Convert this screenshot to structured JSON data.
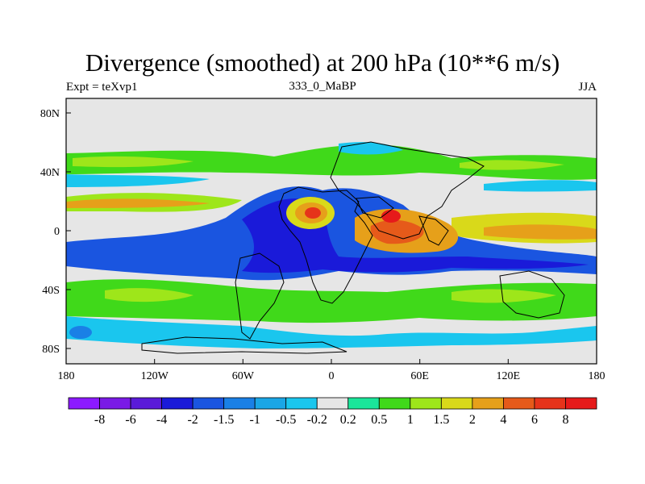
{
  "title": "Divergence (smoothed) at 200 hPa (10**6 m/s)",
  "left_string": "Expt = teXvp1",
  "center_string": "333_0_MaBP",
  "right_string": "JJA",
  "colors": {
    "background_field": "#e6e6e6",
    "coastline": "#000000"
  },
  "chart_data": {
    "type": "heatmap",
    "projection": "cylindrical equidistant",
    "x_ticks": [
      "180",
      "120W",
      "60W",
      "0",
      "60E",
      "120E",
      "180"
    ],
    "y_ticks": [
      "80N",
      "40N",
      "0",
      "40S",
      "80S"
    ],
    "xlim": [
      -180,
      180
    ],
    "ylim": [
      -90,
      90
    ],
    "colorbar": {
      "labels": [
        "-8",
        "-6",
        "-4",
        "-2",
        "-1.5",
        "-1",
        "-0.5",
        "-0.2",
        "0.2",
        "0.5",
        "1",
        "1.5",
        "2",
        "4",
        "6",
        "8"
      ],
      "colors": [
        "#8c1aff",
        "#7a1ae6",
        "#5a1ad9",
        "#1a1ad9",
        "#1a55e0",
        "#1a80e6",
        "#1aa6e6",
        "#1ac6ee",
        "#e6e6e6",
        "#1ae69a",
        "#40d91a",
        "#9ee61a",
        "#d9d91a",
        "#e6a01a",
        "#e65a1a",
        "#e6331a",
        "#e61a1a"
      ]
    },
    "features": [
      {
        "name": "northern-midlat-green-band",
        "lon": [
          -180,
          180
        ],
        "lat": [
          28,
          52
        ],
        "value": 0.5
      },
      {
        "name": "subtropical-north-positive-band",
        "lon": [
          -180,
          -40
        ],
        "lat": [
          10,
          25
        ],
        "value": 1.5
      },
      {
        "name": "central-africa-max",
        "lon": [
          -10,
          0
        ],
        "lat": [
          10,
          18
        ],
        "value": 6
      },
      {
        "name": "india-asia-max",
        "lon": [
          30,
          60
        ],
        "lat": [
          -8,
          15
        ],
        "value": 6
      },
      {
        "name": "tropical-negative-band",
        "lon": [
          -150,
          160
        ],
        "lat": [
          -25,
          20
        ],
        "value": -2
      },
      {
        "name": "southern-midlat-positive",
        "lon": [
          -180,
          180
        ],
        "lat": [
          -62,
          -38
        ],
        "value": 0.5
      }
    ]
  }
}
